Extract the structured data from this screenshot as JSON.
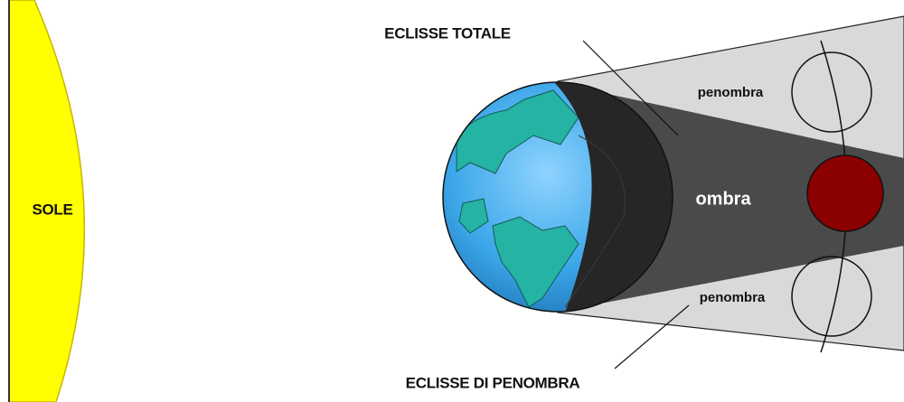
{
  "sun": {
    "label": "SOLE"
  },
  "labels": {
    "total_eclipse": "ECLISSE TOTALE",
    "penumbral_eclipse": "ECLISSE DI PENOMBRA"
  },
  "regions": {
    "penumbra_top": "penombra",
    "umbra": "ombra",
    "penumbra_bottom": "penombra"
  }
}
